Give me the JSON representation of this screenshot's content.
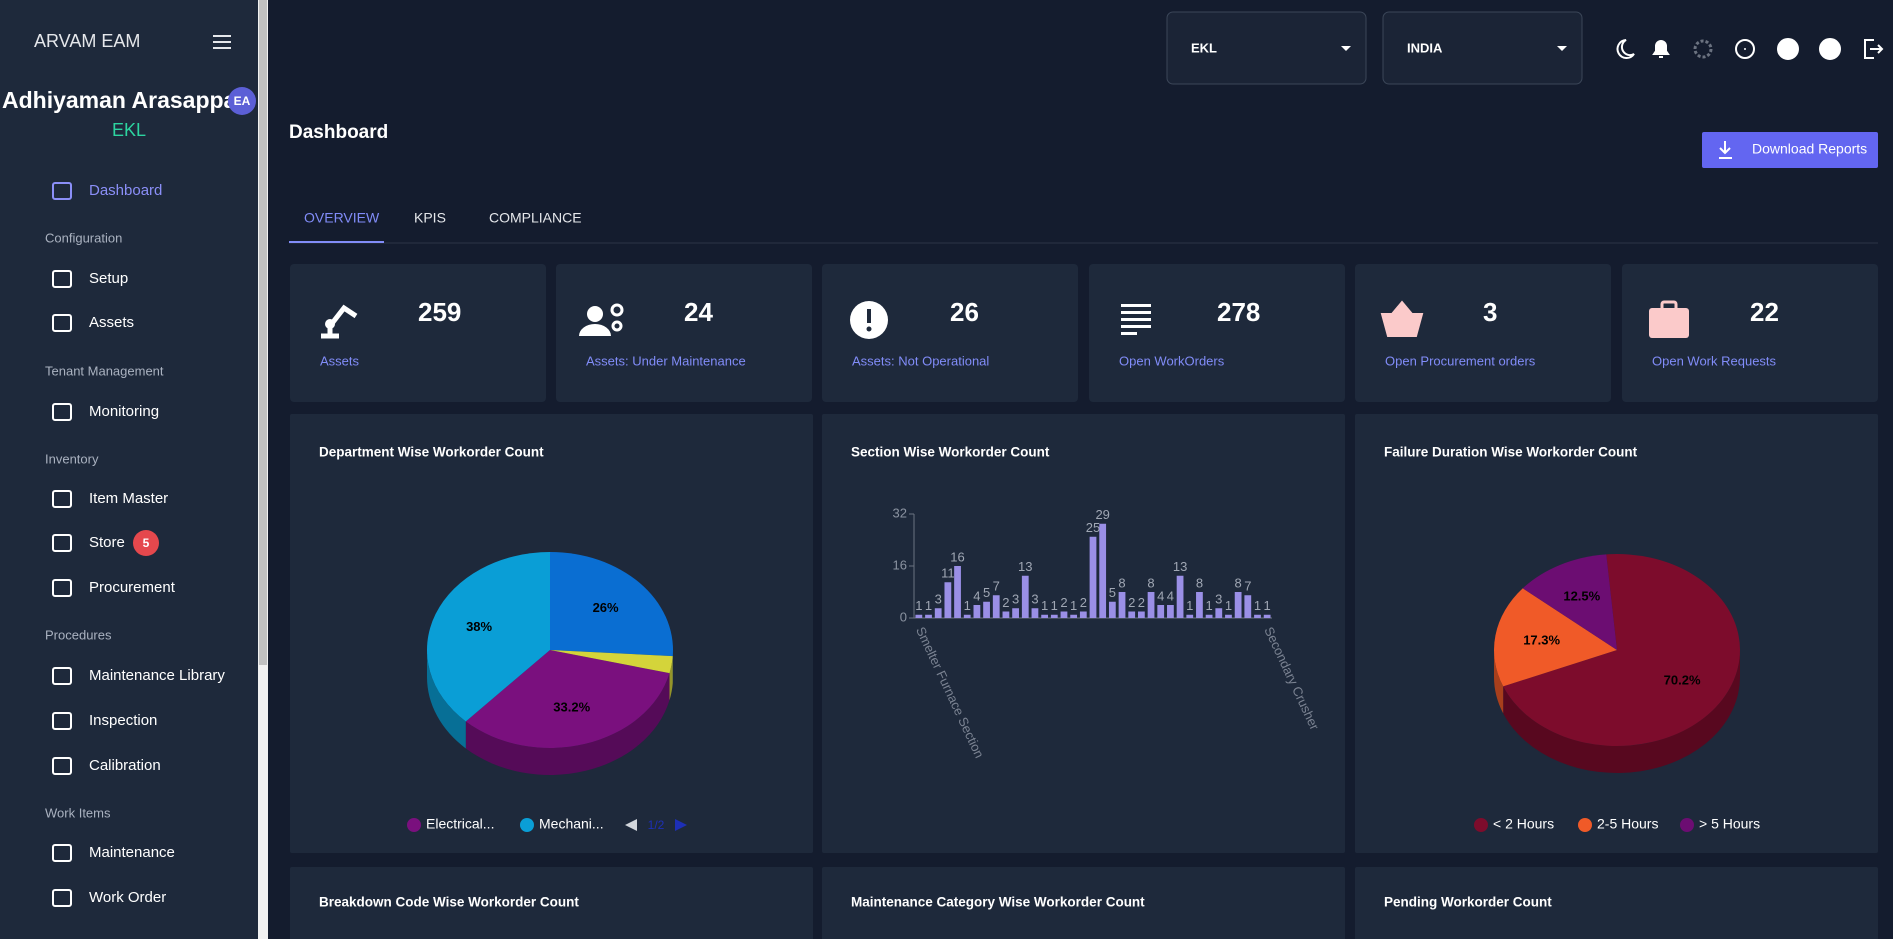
{
  "sidebar": {
    "brand": "ARVAM EAM",
    "user": {
      "name": "Adhiyaman Arasappa",
      "initials": "EA",
      "org": "EKL"
    },
    "nav": [
      {
        "label": "Dashboard"
      },
      {
        "heading": "Configuration"
      },
      {
        "label": "Setup"
      },
      {
        "label": "Assets"
      },
      {
        "heading": "Tenant Management"
      },
      {
        "label": "Monitoring"
      },
      {
        "heading": "Inventory"
      },
      {
        "label": "Item Master"
      },
      {
        "label": "Store",
        "badge": 5
      },
      {
        "label": "Procurement"
      },
      {
        "heading": "Procedures"
      },
      {
        "label": "Maintenance Library"
      },
      {
        "label": "Inspection"
      },
      {
        "label": "Calibration"
      },
      {
        "heading": "Work Items"
      },
      {
        "label": "Maintenance"
      },
      {
        "label": "Work Order"
      }
    ]
  },
  "topbar": {
    "selects": [
      "EKL",
      "INDIA"
    ]
  },
  "page": {
    "title": "Dashboard",
    "button": "Download Reports",
    "tabs": [
      "OVERVIEW",
      "KPIS",
      "COMPLIANCE"
    ]
  },
  "kpis": [
    {
      "value": 259,
      "label": "Assets"
    },
    {
      "value": 24,
      "label": "Assets: Under Maintenance"
    },
    {
      "value": 26,
      "label": "Assets: Not Operational"
    },
    {
      "value": 278,
      "label": "Open WorkOrders"
    },
    {
      "value": 3,
      "label": "Open Procurement orders"
    },
    {
      "value": 22,
      "label": "Open Work Requests"
    }
  ],
  "charts": [
    {
      "type": "pie",
      "title": "Department Wise Workorder Count",
      "categories": [
        "Electrical...",
        "Mechani...",
        null,
        null
      ],
      "values": [
        33.2,
        38,
        26,
        2.8
      ],
      "value_labels": [
        "33.2%",
        "38%",
        "26%",
        null
      ],
      "colors": [
        "#7a107e",
        "#0a9ed6",
        "#0a6ed2",
        "#d4d43a"
      ],
      "legend_pager": "1/2"
    },
    {
      "type": "bar",
      "title": "Section Wise Workorder Count",
      "categories": [
        "Smelter Furnace Section",
        null,
        null,
        null,
        null,
        null,
        null,
        null,
        null,
        null,
        null,
        null,
        null,
        null,
        null,
        null,
        null,
        null,
        null,
        null,
        null,
        null,
        null,
        null,
        null,
        null,
        null,
        null,
        null,
        null,
        null,
        null,
        null,
        null,
        null,
        null,
        "Secondary Crusher"
      ],
      "values": [
        1,
        1,
        3,
        11,
        16,
        1,
        4,
        5,
        7,
        2,
        3,
        13,
        3,
        1,
        1,
        2,
        1,
        2,
        25,
        29,
        5,
        8,
        2,
        2,
        8,
        4,
        4,
        13,
        1,
        8,
        1,
        3,
        1,
        8,
        7,
        1,
        1
      ],
      "color": "#9a8fe6",
      "ylim": [
        0,
        32
      ],
      "yticks": [
        0,
        16,
        32
      ]
    },
    {
      "type": "pie",
      "title": "Failure Duration Wise Workorder Count",
      "categories": [
        "< 2 Hours",
        "2-5 Hours",
        "> 5 Hours"
      ],
      "values": [
        70.2,
        17.3,
        12.5
      ],
      "value_labels": [
        "70.2%",
        "17.3%",
        "12.5%"
      ],
      "colors": [
        "#7d0c2c",
        "#f05a28",
        "#6c0d72"
      ]
    }
  ],
  "bottom_cards": [
    "Breakdown Code Wise Workorder Count",
    "Maintenance Category Wise Workorder Count",
    "Pending Workorder Count"
  ]
}
